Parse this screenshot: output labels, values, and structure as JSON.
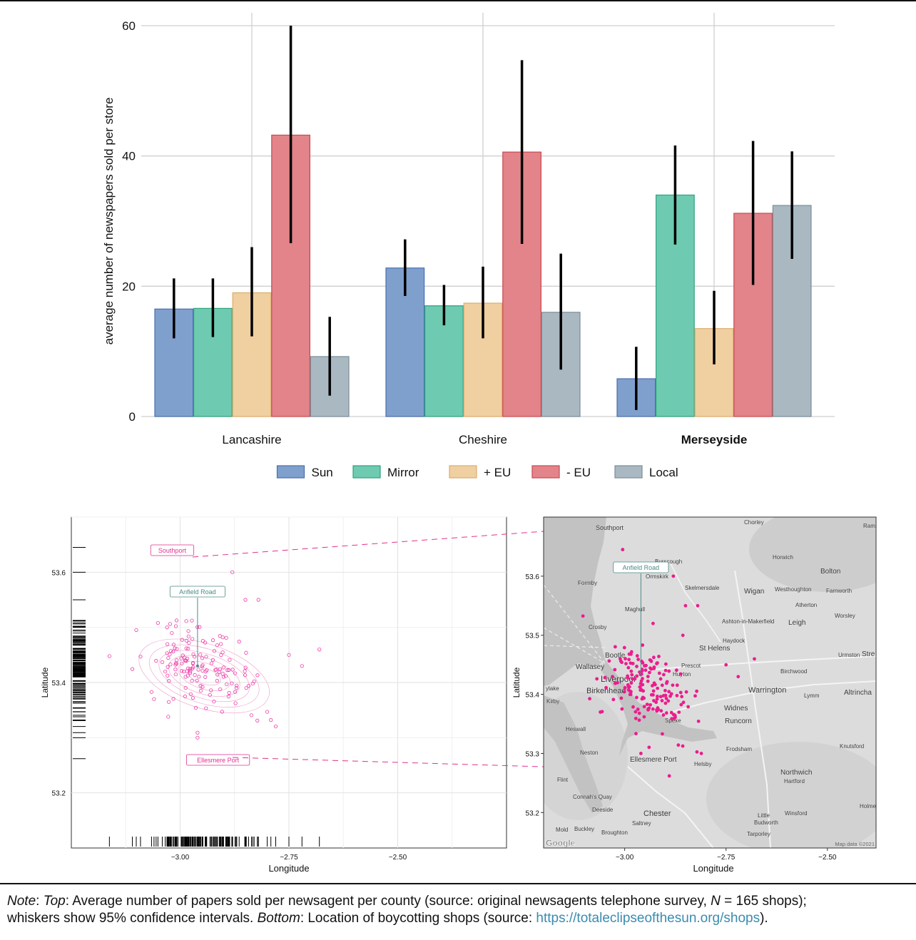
{
  "chart_data": [
    {
      "type": "bar",
      "ylabel": "average number of newspapers sold per store",
      "ylim": [
        0,
        60
      ],
      "yticks": [
        0,
        20,
        40,
        60
      ],
      "grid": true,
      "legend_position": "bottom",
      "categories": [
        "Lancashire",
        "Cheshire",
        "Merseyside"
      ],
      "bold_category": "Merseyside",
      "series": [
        {
          "name": "Sun",
          "color": "#7f9fcd",
          "edge": "#4a6fae",
          "values": [
            16.5,
            22.8,
            5.8
          ],
          "ci_low": [
            12.0,
            18.5,
            1.0
          ],
          "ci_high": [
            21.2,
            27.2,
            10.7
          ]
        },
        {
          "name": "Mirror",
          "color": "#6ecab0",
          "edge": "#2fa37f",
          "values": [
            16.6,
            17.0,
            34.0
          ],
          "ci_low": [
            12.2,
            14.0,
            26.4
          ],
          "ci_high": [
            21.2,
            20.2,
            41.6
          ]
        },
        {
          "name": "+ EU",
          "color": "#f0cfa0",
          "edge": "#dcae6e",
          "values": [
            19.0,
            17.4,
            13.5
          ],
          "ci_low": [
            12.3,
            12.0,
            8.0
          ],
          "ci_high": [
            26.0,
            23.0,
            19.3
          ]
        },
        {
          "name": "- EU",
          "color": "#e28489",
          "edge": "#c84a52",
          "values": [
            43.2,
            40.6,
            31.2
          ],
          "ci_low": [
            26.6,
            26.5,
            20.2
          ],
          "ci_high": [
            60.0,
            54.7,
            42.3
          ]
        },
        {
          "name": "Local",
          "color": "#a9b8c1",
          "edge": "#7b8e9a",
          "values": [
            9.2,
            16.0,
            32.4
          ],
          "ci_low": [
            3.2,
            7.2,
            24.2
          ],
          "ci_high": [
            15.3,
            25.0,
            40.7
          ]
        }
      ]
    },
    {
      "type": "scatter",
      "xlabel": "Longitude",
      "ylabel": "Latitude",
      "xticks": [
        -3.0,
        -2.75,
        -2.5
      ],
      "xtick_labels": [
        "−3.00",
        "−2.75",
        "−2.50"
      ],
      "yticks": [
        53.2,
        53.4,
        53.6
      ],
      "xlim": [
        -3.25,
        -2.25
      ],
      "ylim": [
        53.1,
        53.7
      ],
      "point_color": "#ec3aa6",
      "annotations": [
        {
          "text": "Southport",
          "x": -3.005,
          "y": 53.645,
          "color": "#e0318f"
        },
        {
          "text": "Anfield Road",
          "x": -2.96,
          "y": 53.43,
          "color": "#4c8a86"
        },
        {
          "text": "Ellesmere Port",
          "x": -2.89,
          "y": 53.262,
          "color": "#e0318f"
        }
      ],
      "cluster": {
        "center": [
          -2.95,
          53.42
        ],
        "spread": [
          0.07,
          0.04
        ],
        "n": 150
      }
    },
    {
      "type": "scatter",
      "xlabel": "Longitude",
      "ylabel": "Latitude",
      "xticks": [
        -3.0,
        -2.75,
        -2.5
      ],
      "xtick_labels": [
        "−3.00",
        "−2.75",
        "−2.50"
      ],
      "yticks": [
        53.2,
        53.3,
        53.4,
        53.5,
        53.6
      ],
      "xlim": [
        -3.2,
        -2.38
      ],
      "ylim": [
        53.14,
        53.7
      ],
      "point_color": "#ec1c8c",
      "annotations": [
        {
          "text": "Anfield Road",
          "x": -2.96,
          "y": 53.43,
          "color": "#4c8a86"
        }
      ],
      "map_labels": [
        "Southport",
        "Chorley",
        "Ramsb",
        "Burscough",
        "Horwich",
        "Bolton",
        "Ormskirk",
        "Formby",
        "Skelmersdale",
        "Wigan",
        "Westhoughton",
        "Farnworth",
        "Maghull",
        "Atherton",
        "Worsley",
        "Ashton-in-Makerfield",
        "Leigh",
        "Crosby",
        "Haydock",
        "Bootle",
        "St Helens",
        "Urmston",
        "Stre",
        "Wallasey",
        "Prescot",
        "Huyton",
        "Birchwood",
        "Liverpool",
        "ylake",
        "Birkenhead",
        "Warrington",
        "Lymm",
        "Altrincha",
        "Kirby",
        "Widnes",
        "Runcorn",
        "Heswall",
        "Speke",
        "Knutsford",
        "Neston",
        "Frodsham",
        "Ellesmere Port",
        "Helsby",
        "Northwich",
        "Hartford",
        "Flint",
        "Connah's Quay",
        "Deeside",
        "Chester",
        "Little",
        "Budworth",
        "Winsford",
        "Holmes Chap",
        "Saltney",
        "Mold",
        "Buckley",
        "Broughton",
        "Tarporley"
      ],
      "attribution": "Map data ©2021",
      "logo": "Google",
      "cluster": {
        "center": [
          -2.94,
          53.41
        ],
        "spread": [
          0.05,
          0.035
        ],
        "n": 170
      }
    }
  ],
  "note": {
    "prefix": "Note",
    "top_label": "Top",
    "part1": ": Average number of papers sold per newsagent per county (source: original newsagents telephone survey, ",
    "n_symbol": "N",
    "part2": " = 165 shops);",
    "part3": "whiskers show 95% confidence intervals. ",
    "bottom_label": "Bottom",
    "part4": ": Location of boycotting shops (source: ",
    "link": "https://totaleclipseofthesun.org/shops",
    "part5": ")."
  }
}
